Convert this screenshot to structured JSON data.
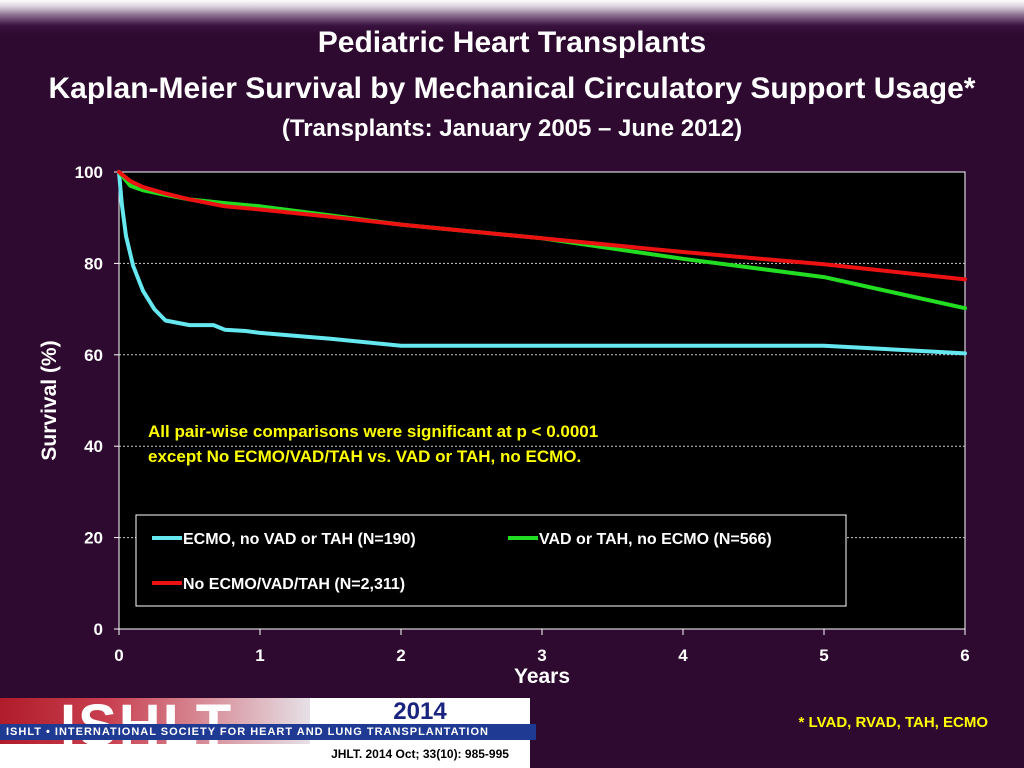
{
  "title": "Pediatric Heart Transplants",
  "subtitle_main": "Kaplan-Meier Survival by Mechanical Circulatory Support Usage*",
  "subtitle_small": "(Transplants: January 2005 – June 2012)",
  "annotation_line1": "All pair-wise comparisons were significant at p < 0.0001",
  "annotation_line2": "except No ECMO/VAD/TAH vs. VAD or TAH, no ECMO.",
  "footnote": "* LVAD, RVAD, TAH, ECMO",
  "footer": {
    "logo_text": "ISHLT",
    "year": "2014",
    "org": "ISHLT • INTERNATIONAL SOCIETY FOR HEART AND LUNG TRANSPLANTATION",
    "citation": "JHLT. 2014 Oct; 33(10): 985-995"
  },
  "colors": {
    "background": "#2e0a30",
    "plot_bg": "#000000",
    "annotation": "#ffff00",
    "axis_text": "#ffffff"
  },
  "chart_data": {
    "type": "line",
    "xlabel": "Years",
    "ylabel": "Survival (%)",
    "xlim": [
      0,
      6
    ],
    "ylim": [
      0,
      100
    ],
    "xticks": [
      0,
      1,
      2,
      3,
      4,
      5,
      6
    ],
    "yticks": [
      0,
      20,
      40,
      60,
      80,
      100
    ],
    "grid": "horizontal dashed",
    "legend_position": "bottom-left inside",
    "series": [
      {
        "name": "ECMO, no VAD or TAH (N=190)",
        "color": "#66e8f0",
        "x": [
          0,
          0.02,
          0.05,
          0.1,
          0.17,
          0.25,
          0.33,
          0.5,
          0.67,
          0.75,
          0.9,
          1.0,
          1.5,
          2.0,
          3.0,
          4.0,
          5.0,
          6.0
        ],
        "y": [
          100,
          93,
          86,
          79.5,
          74,
          70,
          67.5,
          66.5,
          66.5,
          65.5,
          65.2,
          64.8,
          63.5,
          62,
          62,
          62,
          62,
          60.3
        ]
      },
      {
        "name": "VAD or TAH, no ECMO (N=566)",
        "color": "#22dd22",
        "x": [
          0,
          0.08,
          0.17,
          0.25,
          0.33,
          0.5,
          0.75,
          1.0,
          1.5,
          2.0,
          3.0,
          4.0,
          5.0,
          6.0
        ],
        "y": [
          100,
          97,
          96,
          95.5,
          95,
          94,
          93.2,
          92.5,
          90.5,
          88.5,
          85.5,
          81,
          77,
          70.2
        ]
      },
      {
        "name": "No ECMO/VAD/TAH (N=2,311)",
        "color": "#ee1111",
        "x": [
          0,
          0.08,
          0.17,
          0.25,
          0.33,
          0.5,
          0.75,
          1.0,
          1.5,
          2.0,
          3.0,
          4.0,
          5.0,
          6.0
        ],
        "y": [
          100,
          98,
          96.7,
          96,
          95.3,
          94,
          92.5,
          91.8,
          90.2,
          88.5,
          85.5,
          82.5,
          79.8,
          76.5
        ]
      }
    ]
  }
}
